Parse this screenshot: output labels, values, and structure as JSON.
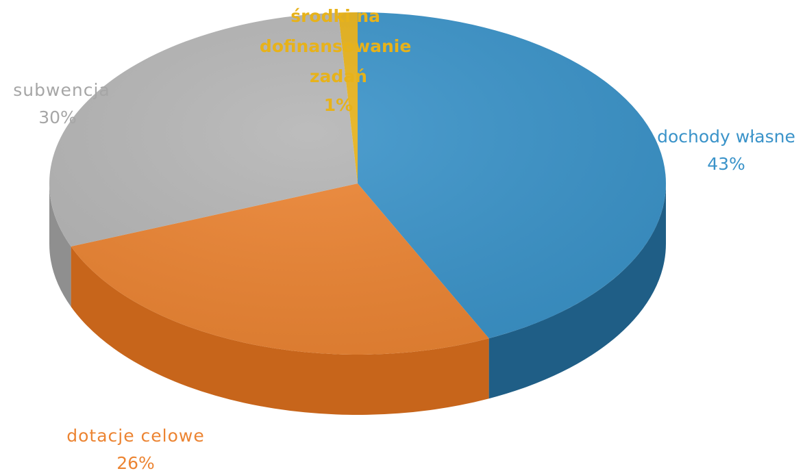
{
  "chart_data": {
    "type": "pie",
    "style": "3d",
    "title": "",
    "slices": [
      {
        "label": "dochody własne",
        "value": 43,
        "value_label": "43%",
        "color": "#3a93c9",
        "side_color": "#1f5e86"
      },
      {
        "label": "dotacje celowe",
        "value": 26,
        "value_label": "26%",
        "color": "#ec8432",
        "side_color": "#c7651b"
      },
      {
        "label": "subwencja",
        "value": 30,
        "value_label": "30%",
        "color": "#b5b5b5",
        "side_color": "#8f8f8f"
      },
      {
        "label": "środki na dofinansowanie zadań",
        "value": 1,
        "value_label": "1%",
        "color": "#e7b21a",
        "side_color": "#b88a0c"
      }
    ]
  }
}
